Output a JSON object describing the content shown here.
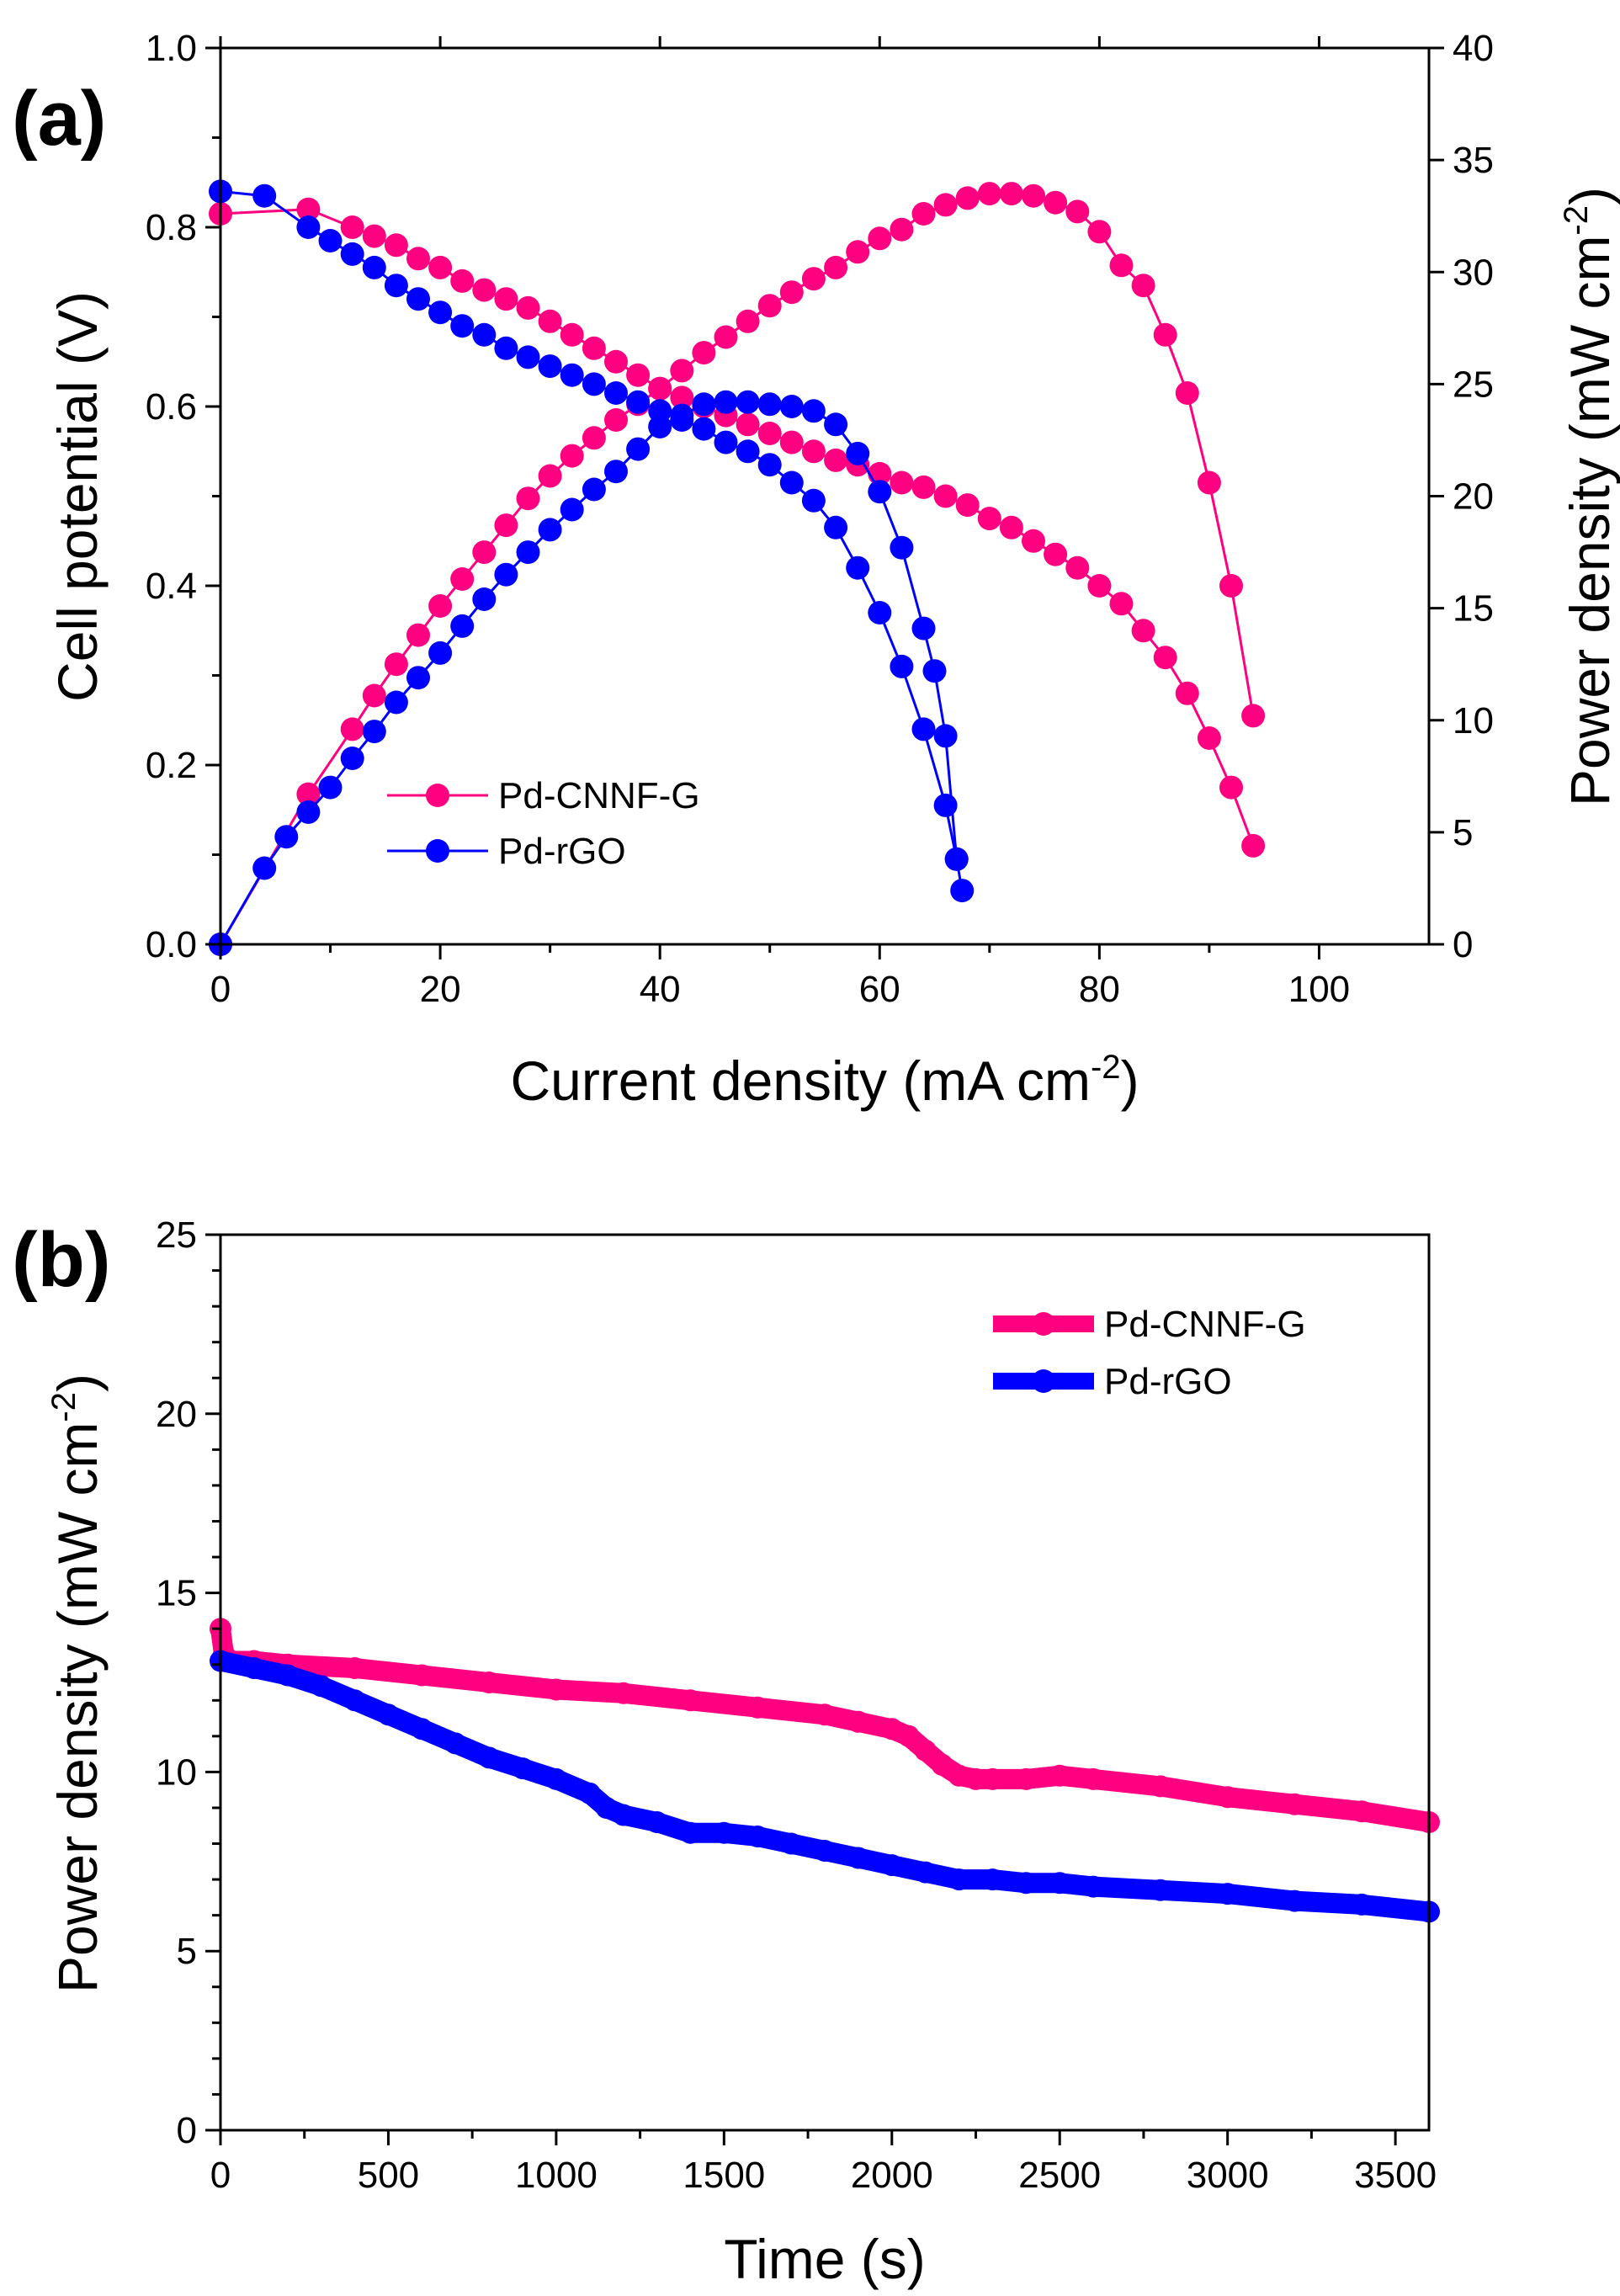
{
  "colors": {
    "pd_cnnf_g": "#ff0080",
    "pd_rgo": "#0000ff"
  },
  "chart_data": [
    {
      "type": "line",
      "panel_label": "(a)",
      "xlabel": "Current density (mA cm",
      "xlabel_sup": "-2",
      "xlabel_end": ")",
      "ylabel_left": "Cell potential (V)",
      "ylabel_right": "Power density (mW cm",
      "ylabel_right_sup": "-2",
      "ylabel_right_end": ")",
      "xlim": [
        0,
        110
      ],
      "ylim_left": [
        0,
        1.0
      ],
      "ylim_right": [
        0,
        40
      ],
      "x_ticks": [
        "0",
        "20",
        "40",
        "60",
        "80",
        "100"
      ],
      "y_left_ticks": [
        "0.0",
        "0.2",
        "0.4",
        "0.6",
        "0.8",
        "1.0"
      ],
      "y_right_ticks": [
        "0",
        "5",
        "10",
        "15",
        "20",
        "25",
        "30",
        "35",
        "40"
      ],
      "legend": {
        "position": "lower-left",
        "entries": [
          "Pd-CNNF-G",
          "Pd-rGO"
        ]
      },
      "series": [
        {
          "name": "Pd-CNNF-G",
          "kind": "polarization",
          "axis": "left",
          "color": "#ff0080",
          "x": [
            0,
            8,
            12,
            14,
            16,
            18,
            20,
            22,
            24,
            26,
            28,
            30,
            32,
            34,
            36,
            38,
            40,
            42,
            44,
            46,
            48,
            50,
            52,
            54,
            56,
            58,
            60,
            62,
            64,
            66,
            68,
            70,
            72,
            74,
            76,
            78,
            80,
            82,
            84,
            86,
            88,
            90,
            92,
            94
          ],
          "y": [
            0.815,
            0.82,
            0.8,
            0.79,
            0.78,
            0.765,
            0.755,
            0.74,
            0.73,
            0.72,
            0.71,
            0.695,
            0.68,
            0.665,
            0.65,
            0.635,
            0.62,
            0.61,
            0.6,
            0.59,
            0.58,
            0.57,
            0.56,
            0.55,
            0.54,
            0.535,
            0.525,
            0.515,
            0.51,
            0.5,
            0.49,
            0.475,
            0.465,
            0.45,
            0.435,
            0.42,
            0.4,
            0.38,
            0.35,
            0.32,
            0.28,
            0.23,
            0.175,
            0.11
          ]
        },
        {
          "name": "Pd-CNNF-G",
          "kind": "power",
          "axis": "right",
          "color": "#ff0080",
          "x": [
            0,
            8,
            12,
            14,
            16,
            18,
            20,
            22,
            24,
            26,
            28,
            30,
            32,
            34,
            36,
            38,
            40,
            42,
            44,
            46,
            48,
            50,
            52,
            54,
            56,
            58,
            60,
            62,
            64,
            66,
            68,
            70,
            72,
            74,
            76,
            78,
            80,
            82,
            84,
            86,
            88,
            90,
            92,
            94
          ],
          "y": [
            0,
            6.7,
            9.6,
            11.1,
            12.5,
            13.8,
            15.1,
            16.3,
            17.5,
            18.7,
            19.9,
            20.9,
            21.8,
            22.6,
            23.4,
            24.1,
            24.8,
            25.6,
            26.4,
            27.1,
            27.8,
            28.5,
            29.1,
            29.7,
            30.2,
            30.9,
            31.5,
            31.9,
            32.6,
            33.0,
            33.3,
            33.5,
            33.5,
            33.4,
            33.1,
            32.7,
            31.8,
            30.3,
            29.4,
            27.2,
            24.6,
            20.6,
            16.0,
            10.2
          ]
        },
        {
          "name": "Pd-rGO",
          "kind": "polarization",
          "axis": "left",
          "color": "#0000ff",
          "x": [
            0,
            4,
            8,
            10,
            12,
            14,
            16,
            18,
            20,
            22,
            24,
            26,
            28,
            30,
            32,
            34,
            36,
            38,
            40,
            42,
            44,
            46,
            48,
            50,
            52,
            54,
            56,
            58,
            60,
            62,
            64,
            66,
            67,
            67.5
          ],
          "y": [
            0.84,
            0.835,
            0.8,
            0.785,
            0.77,
            0.755,
            0.735,
            0.72,
            0.705,
            0.69,
            0.68,
            0.665,
            0.655,
            0.645,
            0.635,
            0.625,
            0.615,
            0.605,
            0.595,
            0.585,
            0.575,
            0.56,
            0.55,
            0.535,
            0.515,
            0.495,
            0.465,
            0.42,
            0.37,
            0.31,
            0.24,
            0.155,
            0.095,
            0.06
          ]
        },
        {
          "name": "Pd-rGO",
          "kind": "power",
          "axis": "right",
          "color": "#0000ff",
          "x": [
            0,
            4,
            6,
            8,
            10,
            12,
            14,
            16,
            18,
            20,
            22,
            24,
            26,
            28,
            30,
            32,
            34,
            36,
            38,
            40,
            42,
            44,
            46,
            48,
            50,
            52,
            54,
            56,
            58,
            60,
            62,
            64,
            65,
            66,
            67
          ],
          "y": [
            0,
            3.4,
            4.8,
            5.9,
            7.0,
            8.3,
            9.5,
            10.8,
            11.9,
            13.0,
            14.2,
            15.4,
            16.5,
            17.5,
            18.5,
            19.4,
            20.3,
            21.1,
            22.1,
            23.1,
            23.6,
            24.1,
            24.2,
            24.2,
            24.1,
            24.0,
            23.8,
            23.2,
            21.9,
            20.2,
            17.7,
            14.1,
            12.2,
            9.3,
            3.8
          ]
        }
      ]
    },
    {
      "type": "line",
      "panel_label": "(b)",
      "xlabel": "Time (s)",
      "ylabel": "Power density (mW cm",
      "ylabel_sup": "-2",
      "ylabel_end": ")",
      "xlim": [
        0,
        3600
      ],
      "ylim": [
        0,
        25
      ],
      "x_ticks": [
        "0",
        "500",
        "1000",
        "1500",
        "2000",
        "2500",
        "3000",
        "3500"
      ],
      "y_ticks": [
        "0",
        "5",
        "10",
        "15",
        "20",
        "25"
      ],
      "legend": {
        "position": "top-right",
        "entries": [
          "Pd-CNNF-G",
          "Pd-rGO"
        ]
      },
      "series": [
        {
          "name": "Pd-CNNF-G",
          "color": "#ff0080",
          "x": [
            0,
            10,
            30,
            100,
            200,
            400,
            600,
            800,
            1000,
            1200,
            1400,
            1600,
            1800,
            1900,
            2000,
            2050,
            2100,
            2150,
            2200,
            2250,
            2300,
            2400,
            2500,
            2600,
            2800,
            3000,
            3200,
            3400,
            3600
          ],
          "y": [
            14.0,
            13.3,
            13.1,
            13.1,
            13.0,
            12.9,
            12.7,
            12.5,
            12.3,
            12.2,
            12.0,
            11.8,
            11.6,
            11.4,
            11.2,
            11.0,
            10.6,
            10.2,
            9.9,
            9.8,
            9.8,
            9.8,
            9.9,
            9.8,
            9.6,
            9.3,
            9.1,
            8.9,
            8.6
          ]
        },
        {
          "name": "Pd-rGO",
          "color": "#0000ff",
          "x": [
            0,
            100,
            200,
            300,
            400,
            500,
            600,
            700,
            800,
            900,
            1000,
            1100,
            1150,
            1200,
            1300,
            1400,
            1500,
            1600,
            1700,
            1800,
            1900,
            2000,
            2100,
            2200,
            2300,
            2400,
            2500,
            2600,
            2800,
            3000,
            3200,
            3400,
            3600
          ],
          "y": [
            13.1,
            12.9,
            12.7,
            12.4,
            12.0,
            11.6,
            11.2,
            10.8,
            10.4,
            10.1,
            9.8,
            9.4,
            9.0,
            8.8,
            8.6,
            8.3,
            8.3,
            8.2,
            8.0,
            7.8,
            7.6,
            7.4,
            7.2,
            7.0,
            7.0,
            6.9,
            6.9,
            6.8,
            6.7,
            6.6,
            6.4,
            6.3,
            6.1
          ]
        }
      ]
    }
  ]
}
